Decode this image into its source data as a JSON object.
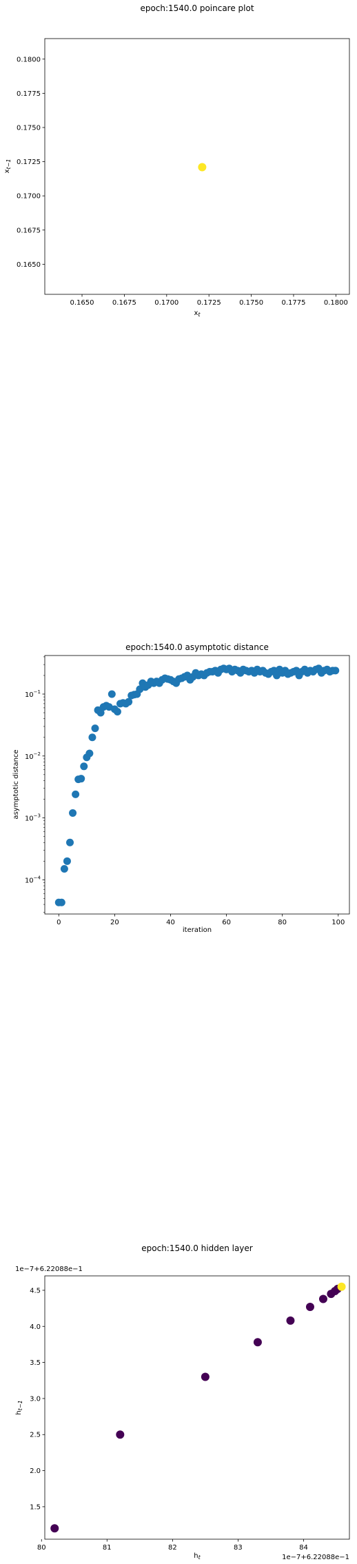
{
  "chart_data": [
    {
      "type": "scatter",
      "title": "epoch:1540.0 poincare plot",
      "xlabel": "x_t",
      "ylabel": "x_{t-1}",
      "xlim": [
        0.1628,
        0.1808
      ],
      "ylim": [
        0.1628,
        0.1815
      ],
      "xticks": [
        0.165,
        0.1675,
        0.17,
        0.1725,
        0.175,
        0.1775,
        0.18
      ],
      "yticks": [
        0.165,
        0.1675,
        0.17,
        0.1725,
        0.175,
        0.1775,
        0.18
      ],
      "tick_labels_x": [
        "0.1650",
        "0.1675",
        "0.1700",
        "0.1725",
        "0.1750",
        "0.1775",
        "0.1800"
      ],
      "tick_labels_y": [
        "0.1650",
        "0.1675",
        "0.1700",
        "0.1725",
        "0.1750",
        "0.1775",
        "0.1800"
      ],
      "points": [
        {
          "x": 0.1721,
          "y": 0.1721,
          "color": "#fde725"
        }
      ]
    },
    {
      "type": "scatter",
      "title": "epoch:1540.0 asymptotic distance",
      "xlabel": "iteration",
      "ylabel": "asymptotic distance",
      "yscale": "log",
      "xlim": [
        -5,
        104
      ],
      "ylim": [
        2.8e-05,
        0.42
      ],
      "xticks": [
        0,
        20,
        40,
        60,
        80,
        100
      ],
      "tick_labels_x": [
        "0",
        "20",
        "40",
        "60",
        "80",
        "100"
      ],
      "yticks": [
        0.0001,
        0.001,
        0.01,
        0.1
      ],
      "color": "#1f77b4",
      "x": [
        0,
        1,
        2,
        3,
        4,
        5,
        6,
        7,
        8,
        9,
        10,
        11,
        12,
        13,
        14,
        15,
        16,
        17,
        18,
        19,
        20,
        21,
        22,
        23,
        24,
        25,
        26,
        27,
        28,
        29,
        30,
        31,
        32,
        33,
        34,
        35,
        36,
        37,
        38,
        39,
        40,
        41,
        42,
        43,
        44,
        45,
        46,
        47,
        48,
        49,
        50,
        51,
        52,
        53,
        54,
        55,
        56,
        57,
        58,
        59,
        60,
        61,
        62,
        63,
        64,
        65,
        66,
        67,
        68,
        69,
        70,
        71,
        72,
        73,
        74,
        75,
        76,
        77,
        78,
        79,
        80,
        81,
        82,
        83,
        84,
        85,
        86,
        87,
        88,
        89,
        90,
        91,
        92,
        93,
        94,
        95,
        96,
        97,
        98,
        99
      ],
      "y": [
        4.3e-05,
        4.3e-05,
        0.00015,
        0.0002,
        0.0004,
        0.0012,
        0.0024,
        0.0042,
        0.0043,
        0.0068,
        0.0095,
        0.011,
        0.02,
        0.028,
        0.055,
        0.05,
        0.062,
        0.065,
        0.062,
        0.1,
        0.057,
        0.052,
        0.07,
        0.072,
        0.07,
        0.075,
        0.095,
        0.098,
        0.1,
        0.12,
        0.15,
        0.13,
        0.14,
        0.16,
        0.15,
        0.16,
        0.15,
        0.17,
        0.18,
        0.175,
        0.17,
        0.16,
        0.15,
        0.175,
        0.18,
        0.19,
        0.2,
        0.17,
        0.19,
        0.22,
        0.2,
        0.21,
        0.2,
        0.22,
        0.23,
        0.23,
        0.24,
        0.22,
        0.25,
        0.26,
        0.25,
        0.26,
        0.23,
        0.25,
        0.24,
        0.22,
        0.25,
        0.24,
        0.23,
        0.24,
        0.22,
        0.25,
        0.23,
        0.24,
        0.22,
        0.21,
        0.23,
        0.24,
        0.2,
        0.25,
        0.22,
        0.24,
        0.21,
        0.22,
        0.23,
        0.24,
        0.2,
        0.23,
        0.25,
        0.22,
        0.24,
        0.23,
        0.25,
        0.26,
        0.22,
        0.24,
        0.25,
        0.23,
        0.24,
        0.24
      ]
    },
    {
      "type": "scatter",
      "title": "epoch:1540.0 hidden layer",
      "xlabel": "h_t",
      "ylabel": "h_{t-1}",
      "x_offset_text": "1e−7+6.22088e−1",
      "y_offset_text": "1e−7+6.22088e−1",
      "xlim": [
        80.05,
        84.7
      ],
      "ylim": [
        1.05,
        4.7
      ],
      "xticks": [
        80,
        81,
        82,
        83,
        84
      ],
      "tick_labels_x": [
        "80",
        "81",
        "82",
        "83",
        "84"
      ],
      "yticks": [
        1.5,
        2.0,
        2.5,
        3.0,
        3.5,
        4.0,
        4.5
      ],
      "tick_labels_y": [
        "1.5",
        "2.0",
        "2.5",
        "3.0",
        "3.5",
        "4.0",
        "4.5"
      ],
      "points": [
        {
          "x": 80.2,
          "y": 1.2,
          "color": "#440154"
        },
        {
          "x": 81.2,
          "y": 2.5,
          "color": "#440154"
        },
        {
          "x": 82.5,
          "y": 3.3,
          "color": "#440154"
        },
        {
          "x": 83.3,
          "y": 3.78,
          "color": "#440154"
        },
        {
          "x": 83.8,
          "y": 4.08,
          "color": "#440154"
        },
        {
          "x": 84.1,
          "y": 4.27,
          "color": "#440154"
        },
        {
          "x": 84.3,
          "y": 4.38,
          "color": "#440154"
        },
        {
          "x": 84.42,
          "y": 4.45,
          "color": "#440154"
        },
        {
          "x": 84.48,
          "y": 4.49,
          "color": "#440154"
        },
        {
          "x": 84.52,
          "y": 4.52,
          "color": "#440154"
        },
        {
          "x": 84.58,
          "y": 4.55,
          "color": "#fde725"
        }
      ]
    }
  ]
}
